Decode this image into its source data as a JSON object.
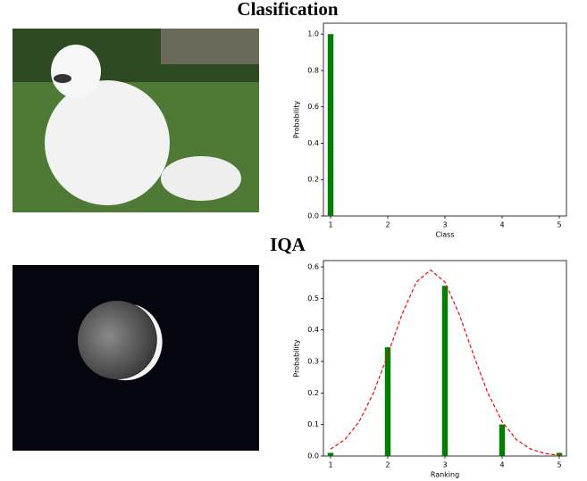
{
  "chart_data": [
    {
      "type": "bar",
      "title": "Clasification",
      "xlabel": "Class",
      "ylabel": "Probability",
      "x": [
        1,
        2,
        3,
        4,
        5
      ],
      "values": [
        1.0,
        0,
        0,
        0,
        0
      ],
      "color": "#008000",
      "xlim": [
        0.875,
        5.125
      ],
      "xticks": [
        1,
        2,
        3,
        4,
        5
      ],
      "ylim": [
        0,
        1.06
      ],
      "yticks": [
        {
          "value": 0,
          "label": "0.0"
        },
        0.2,
        0.4,
        0.6,
        0.8,
        {
          "value": 1,
          "label": "1.0"
        }
      ]
    },
    {
      "type": "bar",
      "title": "IQA",
      "xlabel": "Ranking",
      "ylabel": "Probability",
      "x": [
        1,
        2,
        3,
        4,
        5
      ],
      "values": [
        0.01,
        0.345,
        0.54,
        0.1,
        0.01
      ],
      "color": "#008000",
      "curve": {
        "x": [
          1,
          1.25,
          1.5,
          1.75,
          2,
          2.25,
          2.5,
          2.75,
          3,
          3.25,
          3.5,
          3.75,
          4,
          4.25,
          4.5,
          4.75,
          5
        ],
        "values": [
          0.022,
          0.052,
          0.109,
          0.2,
          0.321,
          0.45,
          0.552,
          0.59,
          0.552,
          0.45,
          0.321,
          0.2,
          0.109,
          0.052,
          0.022,
          0.008,
          0.002
        ],
        "color": "#ff0000"
      },
      "xlim": [
        0.875,
        5.125
      ],
      "xticks": [
        1,
        2,
        3,
        4,
        5
      ],
      "ylim": [
        0,
        0.62
      ],
      "yticks": [
        {
          "value": 0,
          "label": "0.0"
        },
        0.1,
        0.2,
        0.3,
        0.4,
        0.5,
        0.6
      ]
    }
  ]
}
